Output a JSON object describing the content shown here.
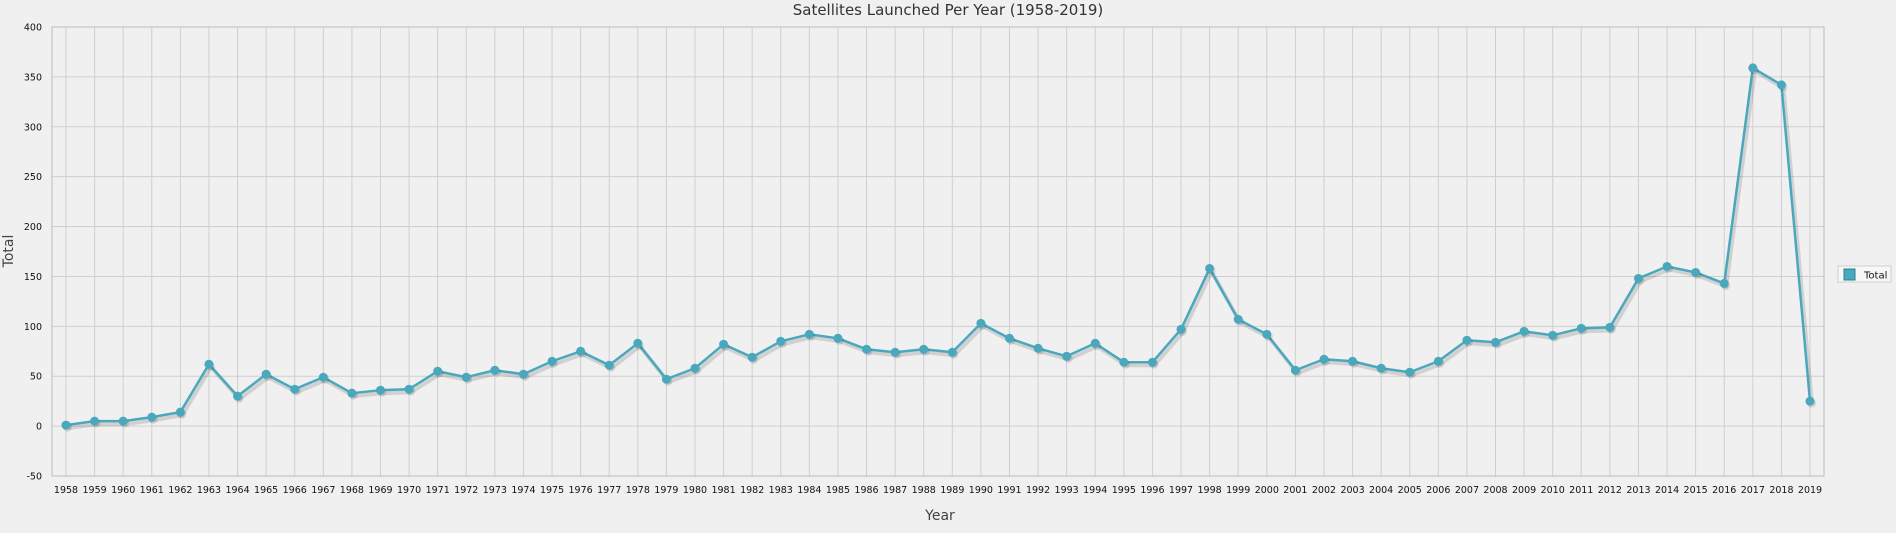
{
  "chart_data": {
    "type": "line",
    "title": "Satellites Launched Per Year (1958-2019)",
    "xlabel": "Year",
    "ylabel": "Total",
    "ylim": [
      -50,
      400
    ],
    "yticks": [
      "400",
      "350",
      "300",
      "250",
      "200",
      "150",
      "100",
      "50",
      "0",
      "-50"
    ],
    "grid": true,
    "legend_position": "right",
    "colors": {
      "line": "#4aa8bd",
      "marker": "#4aa8bd",
      "grid": "#cfcfcf",
      "background": "#f0f0f0"
    },
    "categories": [
      "1958",
      "1959",
      "1960",
      "1961",
      "1962",
      "1963",
      "1964",
      "1965",
      "1966",
      "1967",
      "1968",
      "1969",
      "1970",
      "1971",
      "1972",
      "1973",
      "1974",
      "1975",
      "1976",
      "1977",
      "1978",
      "1979",
      "1980",
      "1981",
      "1982",
      "1983",
      "1984",
      "1985",
      "1986",
      "1987",
      "1988",
      "1989",
      "1990",
      "1991",
      "1992",
      "1993",
      "1994",
      "1995",
      "1996",
      "1997",
      "1998",
      "1999",
      "2000",
      "2001",
      "2002",
      "2003",
      "2004",
      "2005",
      "2006",
      "2007",
      "2008",
      "2009",
      "2010",
      "2011",
      "2012",
      "2013",
      "2014",
      "2015",
      "2016",
      "2017",
      "2018",
      "2019"
    ],
    "series": [
      {
        "name": "Total",
        "values": [
          1,
          5,
          5,
          9,
          14,
          62,
          30,
          52,
          37,
          49,
          33,
          36,
          37,
          55,
          49,
          56,
          52,
          65,
          75,
          61,
          83,
          47,
          58,
          82,
          69,
          85,
          92,
          88,
          77,
          74,
          77,
          74,
          103,
          88,
          78,
          70,
          83,
          64,
          64,
          97,
          158,
          107,
          92,
          56,
          67,
          65,
          58,
          54,
          65,
          86,
          84,
          95,
          91,
          98,
          99,
          148,
          160,
          154,
          143,
          359,
          342,
          25
        ]
      }
    ]
  }
}
